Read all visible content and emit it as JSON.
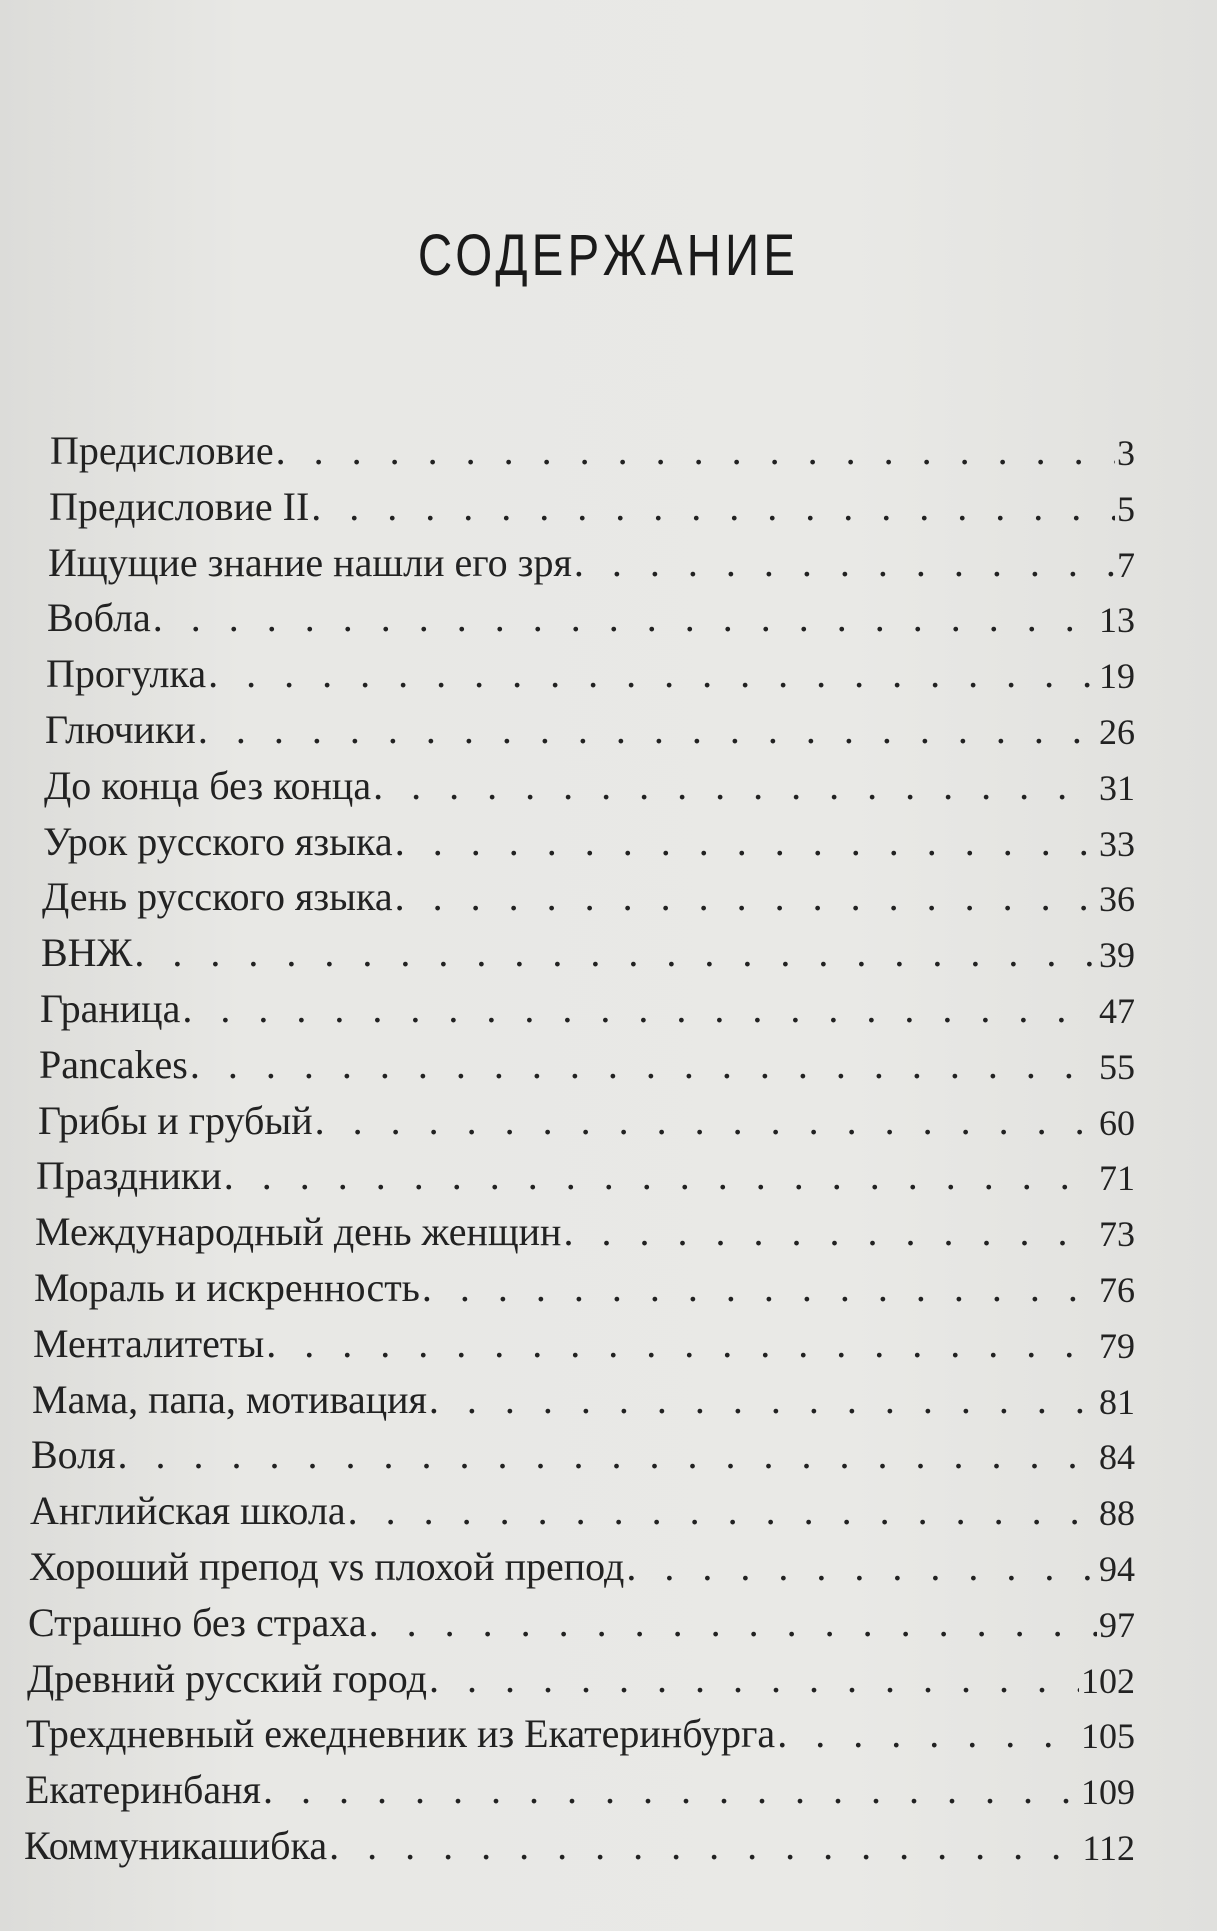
{
  "page": {
    "title": "СОДЕРЖАНИЕ",
    "entries": [
      {
        "title": "Предисловие",
        "page": "3"
      },
      {
        "title": "Предисловие II",
        "page": "5"
      },
      {
        "title": "Ищущие знание нашли его зря",
        "page": "7"
      },
      {
        "title": "Вобла",
        "page": "13"
      },
      {
        "title": "Прогулка",
        "page": "19"
      },
      {
        "title": "Глючики",
        "page": "26"
      },
      {
        "title": "До конца без конца",
        "page": "31"
      },
      {
        "title": "Урок русского языка",
        "page": "33"
      },
      {
        "title": "День русского языка",
        "page": "36"
      },
      {
        "title": "ВНЖ",
        "page": "39"
      },
      {
        "title": "Граница",
        "page": "47"
      },
      {
        "title": "Pancakes",
        "page": "55"
      },
      {
        "title": "Грибы и грубый",
        "page": "60"
      },
      {
        "title": "Праздники",
        "page": "71"
      },
      {
        "title": "Международный день женщин",
        "page": "73"
      },
      {
        "title": "Мораль и искренность",
        "page": "76"
      },
      {
        "title": "Менталитеты",
        "page": "79"
      },
      {
        "title": "Мама, папа, мотивация",
        "page": "81"
      },
      {
        "title": "Воля",
        "page": "84"
      },
      {
        "title": "Английская школа",
        "page": "88"
      },
      {
        "title": "Хороший препод vs плохой препод",
        "page": "94"
      },
      {
        "title": "Страшно без страха",
        "page": "97"
      },
      {
        "title": "Древний русский город",
        "page": "102"
      },
      {
        "title": "Трехдневный ежедневник из Екатеринбурга",
        "page": "105"
      },
      {
        "title": "Екатеринбаня",
        "page": "109"
      },
      {
        "title": "Коммуникашибка",
        "page": "112"
      }
    ]
  }
}
